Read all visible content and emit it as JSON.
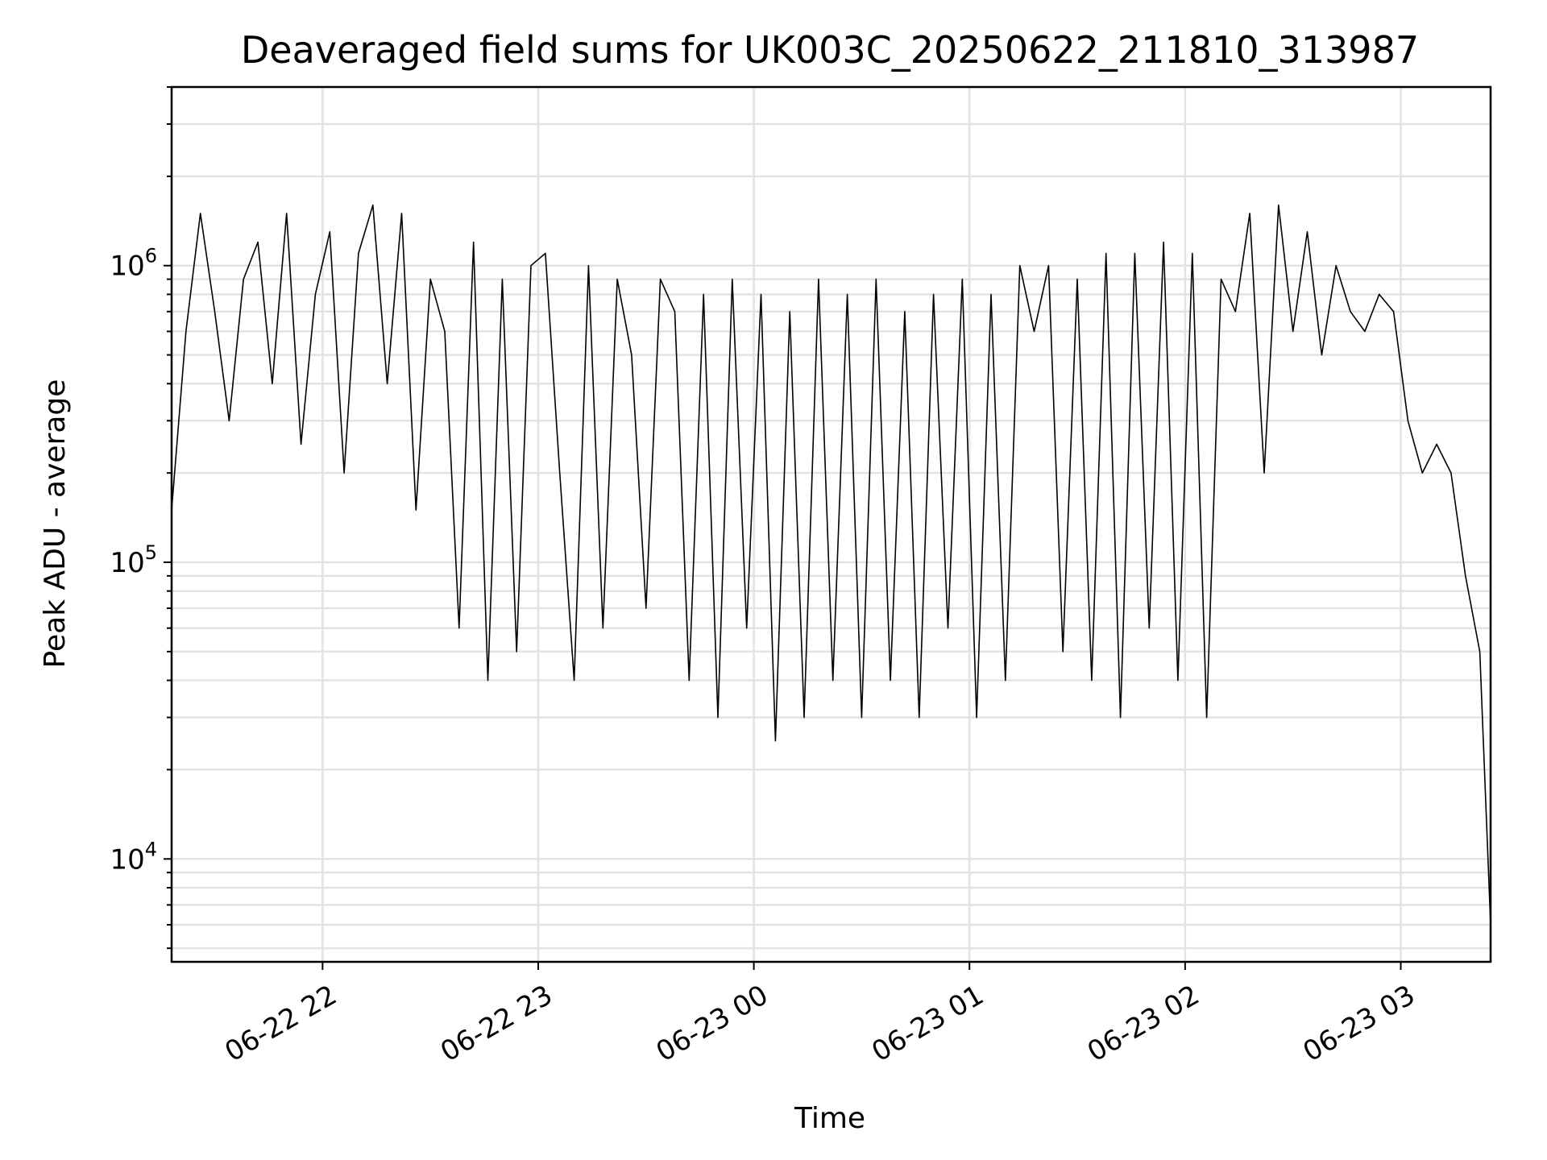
{
  "chart_data": {
    "type": "line",
    "title": "Deaveraged field sums for UK003C_20250622_211810_313987",
    "xlabel": "Time",
    "ylabel": "Peak ADU - average",
    "yscale": "log",
    "ylim": [
      4500,
      4000000
    ],
    "xlim": [
      "2025-06-22 21:18",
      "2025-06-23 03:25"
    ],
    "grid": true,
    "x_ticks": [
      {
        "value": "2025-06-22 22:00",
        "label": "06-22 22"
      },
      {
        "value": "2025-06-22 23:00",
        "label": "06-22 23"
      },
      {
        "value": "2025-06-23 00:00",
        "label": "06-23 00"
      },
      {
        "value": "2025-06-23 01:00",
        "label": "06-23 01"
      },
      {
        "value": "2025-06-23 02:00",
        "label": "06-23 02"
      },
      {
        "value": "2025-06-23 03:00",
        "label": "06-23 03"
      }
    ],
    "y_ticks": [
      {
        "value": 10000,
        "base": "10",
        "exp": "4"
      },
      {
        "value": 100000,
        "base": "10",
        "exp": "5"
      },
      {
        "value": 1000000,
        "base": "10",
        "exp": "6"
      }
    ],
    "line_color": "#000000",
    "series": [
      {
        "x": [
          "2025-06-22 21:18",
          "2025-06-22 21:22",
          "2025-06-22 21:26",
          "2025-06-22 21:30",
          "2025-06-22 21:34",
          "2025-06-22 21:38",
          "2025-06-22 21:42",
          "2025-06-22 21:46",
          "2025-06-22 21:50",
          "2025-06-22 21:54",
          "2025-06-22 21:58",
          "2025-06-22 22:02",
          "2025-06-22 22:06",
          "2025-06-22 22:10",
          "2025-06-22 22:14",
          "2025-06-22 22:18",
          "2025-06-22 22:22",
          "2025-06-22 22:26",
          "2025-06-22 22:30",
          "2025-06-22 22:34",
          "2025-06-22 22:38",
          "2025-06-22 22:42",
          "2025-06-22 22:46",
          "2025-06-22 22:50",
          "2025-06-22 22:54",
          "2025-06-22 22:58",
          "2025-06-22 23:02",
          "2025-06-22 23:06",
          "2025-06-22 23:10",
          "2025-06-22 23:14",
          "2025-06-22 23:18",
          "2025-06-22 23:22",
          "2025-06-22 23:26",
          "2025-06-22 23:30",
          "2025-06-22 23:34",
          "2025-06-22 23:38",
          "2025-06-22 23:42",
          "2025-06-22 23:46",
          "2025-06-22 23:50",
          "2025-06-22 23:54",
          "2025-06-22 23:58",
          "2025-06-23 00:02",
          "2025-06-23 00:06",
          "2025-06-23 00:10",
          "2025-06-23 00:14",
          "2025-06-23 00:18",
          "2025-06-23 00:22",
          "2025-06-23 00:26",
          "2025-06-23 00:30",
          "2025-06-23 00:34",
          "2025-06-23 00:38",
          "2025-06-23 00:42",
          "2025-06-23 00:46",
          "2025-06-23 00:50",
          "2025-06-23 00:54",
          "2025-06-23 00:58",
          "2025-06-23 01:02",
          "2025-06-23 01:06",
          "2025-06-23 01:10",
          "2025-06-23 01:14",
          "2025-06-23 01:18",
          "2025-06-23 01:22",
          "2025-06-23 01:26",
          "2025-06-23 01:30",
          "2025-06-23 01:34",
          "2025-06-23 01:38",
          "2025-06-23 01:42",
          "2025-06-23 01:46",
          "2025-06-23 01:50",
          "2025-06-23 01:54",
          "2025-06-23 01:58",
          "2025-06-23 02:02",
          "2025-06-23 02:06",
          "2025-06-23 02:10",
          "2025-06-23 02:14",
          "2025-06-23 02:18",
          "2025-06-23 02:22",
          "2025-06-23 02:26",
          "2025-06-23 02:30",
          "2025-06-23 02:34",
          "2025-06-23 02:38",
          "2025-06-23 02:42",
          "2025-06-23 02:46",
          "2025-06-23 02:50",
          "2025-06-23 02:54",
          "2025-06-23 02:58",
          "2025-06-23 03:02",
          "2025-06-23 03:06",
          "2025-06-23 03:10",
          "2025-06-23 03:14",
          "2025-06-23 03:18",
          "2025-06-23 03:22",
          "2025-06-23 03:25"
        ],
        "y": [
          150000,
          600000,
          1500000,
          700000,
          300000,
          900000,
          1200000,
          400000,
          1500000,
          250000,
          800000,
          1300000,
          200000,
          1100000,
          1600000,
          400000,
          1500000,
          150000,
          900000,
          600000,
          60000,
          1200000,
          40000,
          900000,
          50000,
          1000000,
          1100000,
          200000,
          40000,
          1000000,
          60000,
          900000,
          500000,
          70000,
          900000,
          700000,
          40000,
          800000,
          30000,
          900000,
          60000,
          800000,
          25000,
          700000,
          30000,
          900000,
          40000,
          800000,
          30000,
          900000,
          40000,
          700000,
          30000,
          800000,
          60000,
          900000,
          30000,
          800000,
          40000,
          1000000,
          600000,
          1000000,
          50000,
          900000,
          40000,
          1100000,
          30000,
          1100000,
          60000,
          1200000,
          40000,
          1100000,
          30000,
          900000,
          700000,
          1500000,
          200000,
          1600000,
          600000,
          1300000,
          500000,
          1000000,
          700000,
          600000,
          800000,
          700000,
          300000,
          200000,
          250000,
          200000,
          90000,
          50000,
          6000
        ]
      }
    ]
  }
}
